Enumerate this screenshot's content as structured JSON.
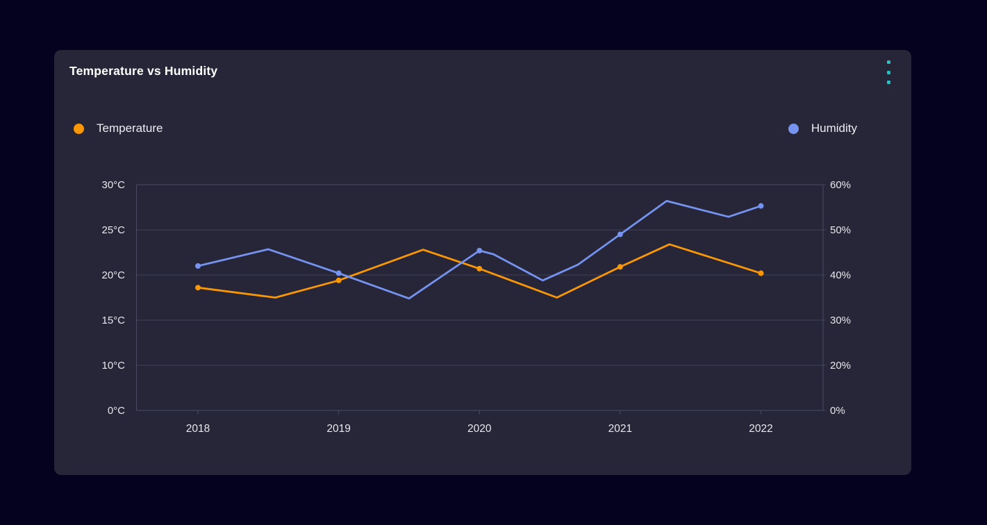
{
  "card": {
    "title": "Temperature vs Humidity",
    "menu_icon": "kebab-menu-icon",
    "background_color": "#262638",
    "page_background_color": "#04021E",
    "menu_dot_color": "#22C4C4"
  },
  "legend": [
    {
      "label": "Temperature",
      "color": "#F99706",
      "position": "left"
    },
    {
      "label": "Humidity",
      "color": "#7593EF",
      "position": "right"
    }
  ],
  "chart_data": {
    "type": "line",
    "title": "Temperature vs Humidity",
    "grid": true,
    "grid_color": "#41415A",
    "border_color": "#4A4A63",
    "label_color": "#E8E8EE",
    "x_axis": {
      "ticks": [
        2018,
        2019,
        2020,
        2021,
        2022
      ],
      "labels": [
        "2018",
        "2019",
        "2020",
        "2021",
        "2022"
      ]
    },
    "y_axis_left": {
      "unit": "°C",
      "labels": [
        "30°C",
        "25°C",
        "20°C",
        "15°C",
        "10°C",
        "0°C"
      ],
      "values": [
        30,
        25,
        20,
        15,
        10,
        0
      ]
    },
    "y_axis_right": {
      "unit": "%",
      "labels": [
        "60%",
        "50%",
        "40%",
        "30%",
        "20%",
        "0%"
      ],
      "values": [
        60,
        50,
        40,
        30,
        20,
        0
      ]
    },
    "series": [
      {
        "name": "Temperature",
        "axis": "left",
        "color": "#F99706",
        "marker_x": [
          2018,
          2019,
          2020,
          2021,
          2022
        ],
        "points": [
          [
            2018.0,
            18.6
          ],
          [
            2018.55,
            17.5
          ],
          [
            2019.0,
            19.4
          ],
          [
            2019.6,
            22.8
          ],
          [
            2020.0,
            20.7
          ],
          [
            2020.55,
            17.5
          ],
          [
            2021.0,
            20.9
          ],
          [
            2021.35,
            23.4
          ],
          [
            2022.0,
            20.2
          ]
        ]
      },
      {
        "name": "Humidity",
        "axis": "right",
        "color": "#7593EF",
        "marker_x": [
          2018,
          2019,
          2020,
          2021,
          2022
        ],
        "points": [
          [
            2018.0,
            42.0
          ],
          [
            2018.5,
            45.7
          ],
          [
            2019.0,
            40.4
          ],
          [
            2019.5,
            34.8
          ],
          [
            2020.0,
            45.4
          ],
          [
            2020.1,
            44.6
          ],
          [
            2020.45,
            38.8
          ],
          [
            2020.7,
            42.3
          ],
          [
            2021.0,
            49.0
          ],
          [
            2021.33,
            56.4
          ],
          [
            2021.77,
            52.9
          ],
          [
            2022.0,
            55.3
          ]
        ]
      }
    ]
  }
}
